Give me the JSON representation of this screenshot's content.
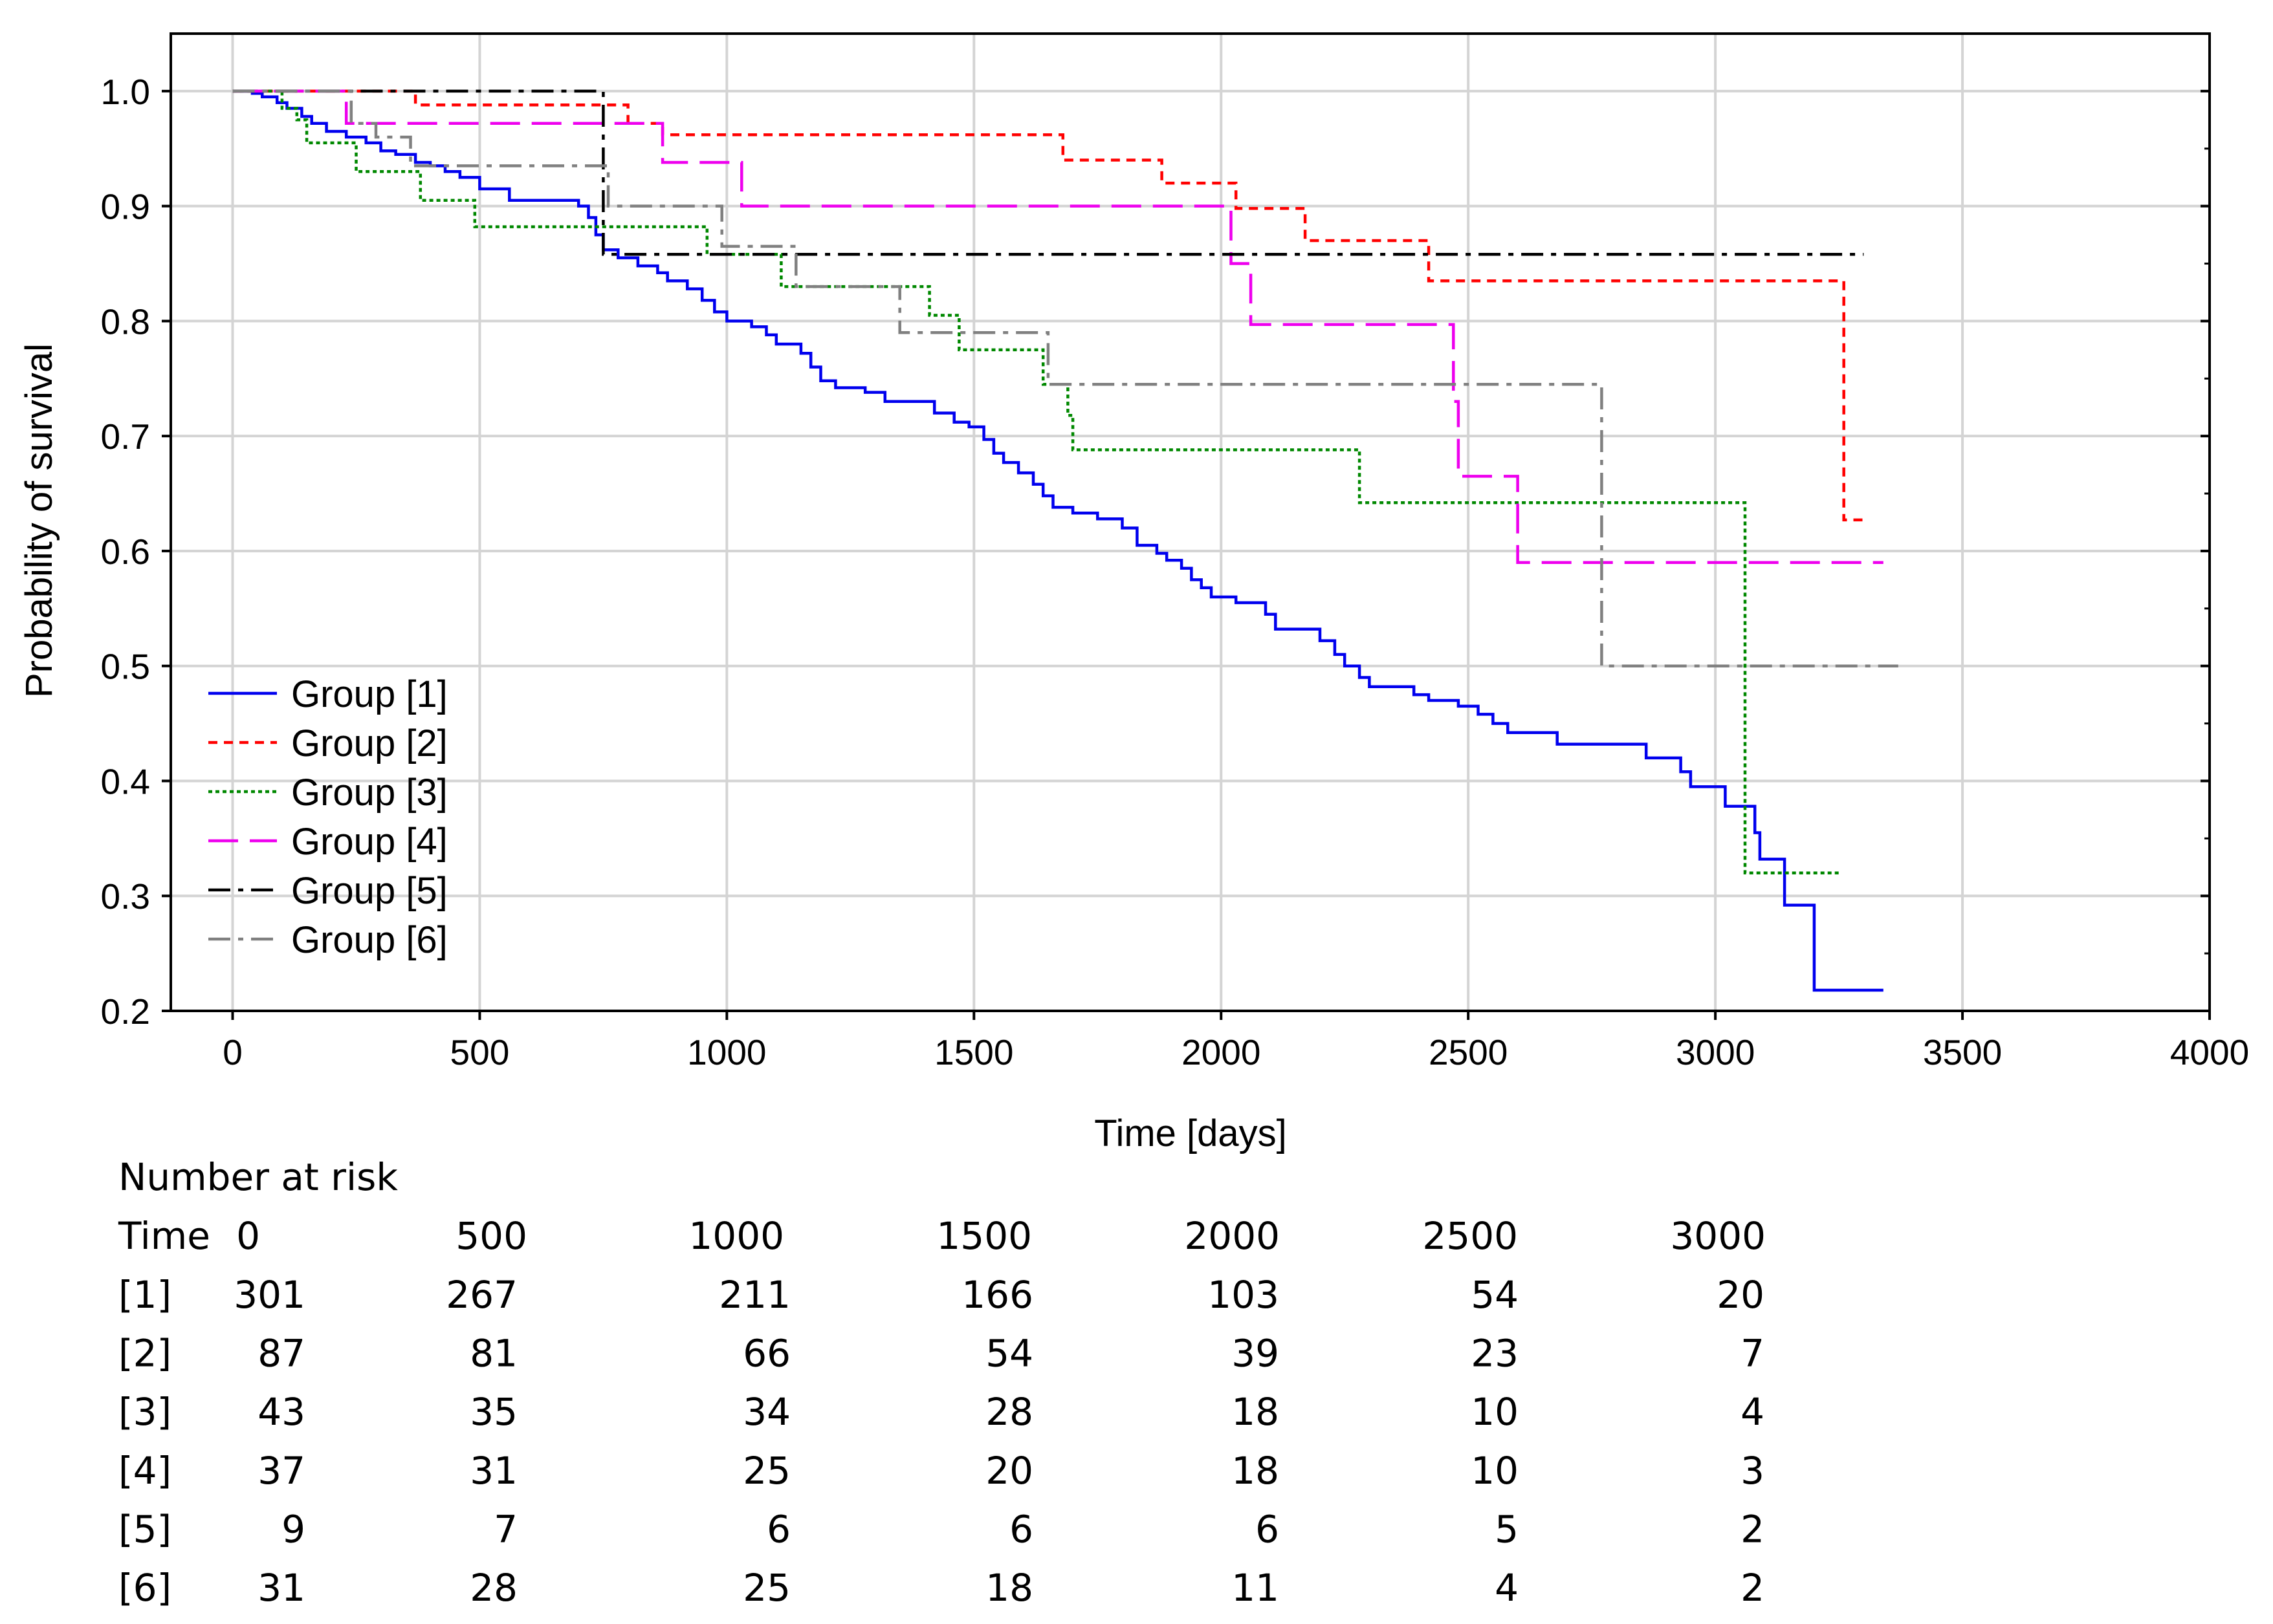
{
  "chart_data": {
    "type": "line",
    "subtype": "kaplan-meier step",
    "title": "",
    "xlabel": "Time [days]",
    "ylabel": "Probability of survival",
    "xlim": [
      -125,
      4000
    ],
    "ylim": [
      0.2,
      1.05
    ],
    "xticks": [
      0,
      500,
      1000,
      1500,
      2000,
      2500,
      3000,
      3500,
      4000
    ],
    "yticks": [
      0.2,
      0.3,
      0.4,
      0.5,
      0.6,
      0.7,
      0.8,
      0.9,
      1.0
    ],
    "ytick_labels": [
      "0.2",
      "0.3",
      "0.4",
      "0.5",
      "0.6",
      "0.7",
      "0.8",
      "0.9",
      "1.0"
    ],
    "grid": true,
    "legend_position": "bottom-left",
    "series": [
      {
        "name": "Group  [1]",
        "color": "#0000ee",
        "dash": "solid",
        "points": [
          [
            0,
            1.0
          ],
          [
            40,
            0.998
          ],
          [
            60,
            0.995
          ],
          [
            90,
            0.99
          ],
          [
            110,
            0.985
          ],
          [
            140,
            0.978
          ],
          [
            160,
            0.972
          ],
          [
            190,
            0.965
          ],
          [
            230,
            0.96
          ],
          [
            270,
            0.955
          ],
          [
            300,
            0.948
          ],
          [
            330,
            0.945
          ],
          [
            370,
            0.938
          ],
          [
            400,
            0.935
          ],
          [
            430,
            0.93
          ],
          [
            460,
            0.925
          ],
          [
            500,
            0.915
          ],
          [
            560,
            0.905
          ],
          [
            700,
            0.9
          ],
          [
            720,
            0.89
          ],
          [
            735,
            0.875
          ],
          [
            750,
            0.862
          ],
          [
            780,
            0.855
          ],
          [
            820,
            0.848
          ],
          [
            860,
            0.842
          ],
          [
            880,
            0.835
          ],
          [
            920,
            0.828
          ],
          [
            950,
            0.818
          ],
          [
            975,
            0.808
          ],
          [
            1000,
            0.8
          ],
          [
            1050,
            0.795
          ],
          [
            1080,
            0.788
          ],
          [
            1100,
            0.78
          ],
          [
            1150,
            0.772
          ],
          [
            1170,
            0.76
          ],
          [
            1190,
            0.748
          ],
          [
            1220,
            0.742
          ],
          [
            1280,
            0.738
          ],
          [
            1320,
            0.73
          ],
          [
            1420,
            0.72
          ],
          [
            1460,
            0.712
          ],
          [
            1490,
            0.708
          ],
          [
            1520,
            0.697
          ],
          [
            1540,
            0.685
          ],
          [
            1560,
            0.677
          ],
          [
            1590,
            0.668
          ],
          [
            1620,
            0.658
          ],
          [
            1640,
            0.648
          ],
          [
            1660,
            0.638
          ],
          [
            1700,
            0.633
          ],
          [
            1750,
            0.628
          ],
          [
            1800,
            0.62
          ],
          [
            1830,
            0.605
          ],
          [
            1870,
            0.598
          ],
          [
            1890,
            0.592
          ],
          [
            1920,
            0.585
          ],
          [
            1940,
            0.575
          ],
          [
            1960,
            0.568
          ],
          [
            1980,
            0.56
          ],
          [
            2030,
            0.555
          ],
          [
            2090,
            0.545
          ],
          [
            2110,
            0.532
          ],
          [
            2200,
            0.522
          ],
          [
            2230,
            0.51
          ],
          [
            2250,
            0.5
          ],
          [
            2280,
            0.49
          ],
          [
            2300,
            0.482
          ],
          [
            2390,
            0.475
          ],
          [
            2420,
            0.47
          ],
          [
            2480,
            0.465
          ],
          [
            2520,
            0.458
          ],
          [
            2550,
            0.45
          ],
          [
            2580,
            0.442
          ],
          [
            2680,
            0.432
          ],
          [
            2860,
            0.42
          ],
          [
            2930,
            0.408
          ],
          [
            2950,
            0.395
          ],
          [
            3020,
            0.378
          ],
          [
            3080,
            0.355
          ],
          [
            3090,
            0.332
          ],
          [
            3140,
            0.292
          ],
          [
            3200,
            0.218
          ],
          [
            3340,
            0.218
          ]
        ]
      },
      {
        "name": "Group  [2]",
        "color": "#ff0000",
        "dash": "short-dash",
        "points": [
          [
            0,
            1.0
          ],
          [
            370,
            0.988
          ],
          [
            800,
            0.972
          ],
          [
            870,
            0.962
          ],
          [
            1680,
            0.94
          ],
          [
            1880,
            0.92
          ],
          [
            2030,
            0.898
          ],
          [
            2170,
            0.87
          ],
          [
            2420,
            0.835
          ],
          [
            3260,
            0.627
          ],
          [
            3310,
            0.627
          ]
        ]
      },
      {
        "name": "Group  [3]",
        "color": "#008800",
        "dash": "dot",
        "points": [
          [
            0,
            1.0
          ],
          [
            100,
            0.985
          ],
          [
            130,
            0.975
          ],
          [
            150,
            0.955
          ],
          [
            250,
            0.93
          ],
          [
            380,
            0.905
          ],
          [
            490,
            0.882
          ],
          [
            960,
            0.858
          ],
          [
            1110,
            0.83
          ],
          [
            1410,
            0.805
          ],
          [
            1470,
            0.775
          ],
          [
            1640,
            0.745
          ],
          [
            1690,
            0.718
          ],
          [
            1700,
            0.688
          ],
          [
            2280,
            0.642
          ],
          [
            3060,
            0.32
          ],
          [
            3250,
            0.32
          ]
        ]
      },
      {
        "name": "Group  [4]",
        "color": "#ee00ee",
        "dash": "long-dash",
        "points": [
          [
            0,
            1.0
          ],
          [
            230,
            0.972
          ],
          [
            870,
            0.938
          ],
          [
            1030,
            0.9
          ],
          [
            2020,
            0.85
          ],
          [
            2060,
            0.797
          ],
          [
            2470,
            0.73
          ],
          [
            2480,
            0.665
          ],
          [
            2600,
            0.59
          ],
          [
            3340,
            0.59
          ]
        ]
      },
      {
        "name": "Group  [5]",
        "color": "#000000",
        "dash": "dash-dot",
        "points": [
          [
            0,
            1.0
          ],
          [
            750,
            0.858
          ],
          [
            3300,
            0.858
          ]
        ]
      },
      {
        "name": "Group  [6]",
        "color": "#808080",
        "dash": "dash-dot",
        "points": [
          [
            0,
            1.0
          ],
          [
            240,
            0.972
          ],
          [
            290,
            0.96
          ],
          [
            360,
            0.935
          ],
          [
            760,
            0.9
          ],
          [
            990,
            0.865
          ],
          [
            1140,
            0.83
          ],
          [
            1350,
            0.79
          ],
          [
            1650,
            0.745
          ],
          [
            2770,
            0.5
          ],
          [
            3370,
            0.5
          ]
        ]
      }
    ],
    "risk_table": {
      "title": "Number at risk",
      "header_label": "Time",
      "times": [
        "0",
        "500",
        "1000",
        "1500",
        "2000",
        "2500",
        "3000"
      ],
      "rows": [
        {
          "label": "[1]",
          "values": [
            "301",
            "267",
            "211",
            "166",
            "103",
            "54",
            "20"
          ]
        },
        {
          "label": "[2]",
          "values": [
            "87",
            "81",
            "66",
            "54",
            "39",
            "23",
            "7"
          ]
        },
        {
          "label": "[3]",
          "values": [
            "43",
            "35",
            "34",
            "28",
            "18",
            "10",
            "4"
          ]
        },
        {
          "label": "[4]",
          "values": [
            "37",
            "31",
            "25",
            "20",
            "18",
            "10",
            "3"
          ]
        },
        {
          "label": "[5]",
          "values": [
            "9",
            "7",
            "6",
            "6",
            "6",
            "5",
            "2"
          ]
        },
        {
          "label": "[6]",
          "values": [
            "31",
            "28",
            "25",
            "18",
            "11",
            "4",
            "2"
          ]
        }
      ]
    }
  }
}
